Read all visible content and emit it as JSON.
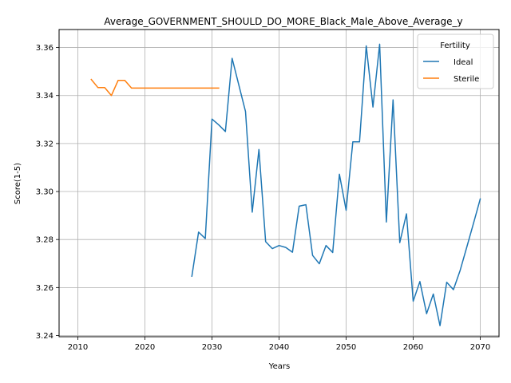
{
  "chart_data": {
    "type": "line",
    "title": "Average_GOVERNMENT_SHOULD_DO_MORE_Black_Male_Above_Average_y",
    "xlabel": "Years",
    "ylabel": "Score(1-5)",
    "xlim": [
      2007.2,
      2072.8
    ],
    "ylim": [
      3.2395,
      3.3675
    ],
    "xticks": [
      2010,
      2020,
      2030,
      2040,
      2050,
      2060,
      2070
    ],
    "yticks": [
      3.24,
      3.26,
      3.28,
      3.3,
      3.32,
      3.34,
      3.36
    ],
    "ytick_labels": [
      "3.24",
      "3.26",
      "3.28",
      "3.30",
      "3.32",
      "3.34",
      "3.36"
    ],
    "grid": true,
    "legend": {
      "title": "Fertility",
      "placement": "top-right"
    },
    "series": [
      {
        "name": "Ideal",
        "color": "#1f77b4",
        "x": [
          2027,
          2028,
          2029,
          2030,
          2031,
          2032,
          2033,
          2034,
          2035,
          2036,
          2037,
          2038,
          2039,
          2040,
          2041,
          2042,
          2043,
          2044,
          2045,
          2046,
          2047,
          2048,
          2049,
          2050,
          2051,
          2052,
          2053,
          2054,
          2055,
          2056,
          2057,
          2058,
          2059,
          2060,
          2061,
          2062,
          2063,
          2064,
          2065,
          2066,
          2067,
          2068,
          2069,
          2070
        ],
        "y": [
          3.2647,
          3.2831,
          3.2804,
          3.3302,
          3.3278,
          3.325,
          3.3555,
          3.3444,
          3.3333,
          3.2914,
          3.3175,
          3.2791,
          3.2762,
          3.2775,
          3.2767,
          3.2747,
          3.2939,
          3.2945,
          3.2734,
          3.2699,
          3.2775,
          3.2746,
          3.3072,
          3.2922,
          3.3207,
          3.3207,
          3.3607,
          3.3352,
          3.3614,
          3.2873,
          3.3382,
          3.2787,
          3.2907,
          3.2543,
          3.2625,
          3.2491,
          3.2573,
          3.2441,
          3.2622,
          3.2591,
          3.2671,
          3.2769,
          3.2868,
          3.2969
        ]
      },
      {
        "name": "Sterile",
        "color": "#ff7f0e",
        "x": [
          2012,
          2013,
          2014,
          2015,
          2016,
          2017,
          2018,
          2019,
          2020,
          2021,
          2022,
          2023,
          2024,
          2025,
          2026,
          2027,
          2028,
          2029,
          2030,
          2031
        ],
        "y": [
          3.3467,
          3.3433,
          3.3433,
          3.34,
          3.3463,
          3.3463,
          3.3431,
          3.3431,
          3.3431,
          3.3431,
          3.3431,
          3.3431,
          3.3431,
          3.3431,
          3.3431,
          3.3431,
          3.3431,
          3.3431,
          3.3431,
          3.3431
        ]
      }
    ]
  }
}
